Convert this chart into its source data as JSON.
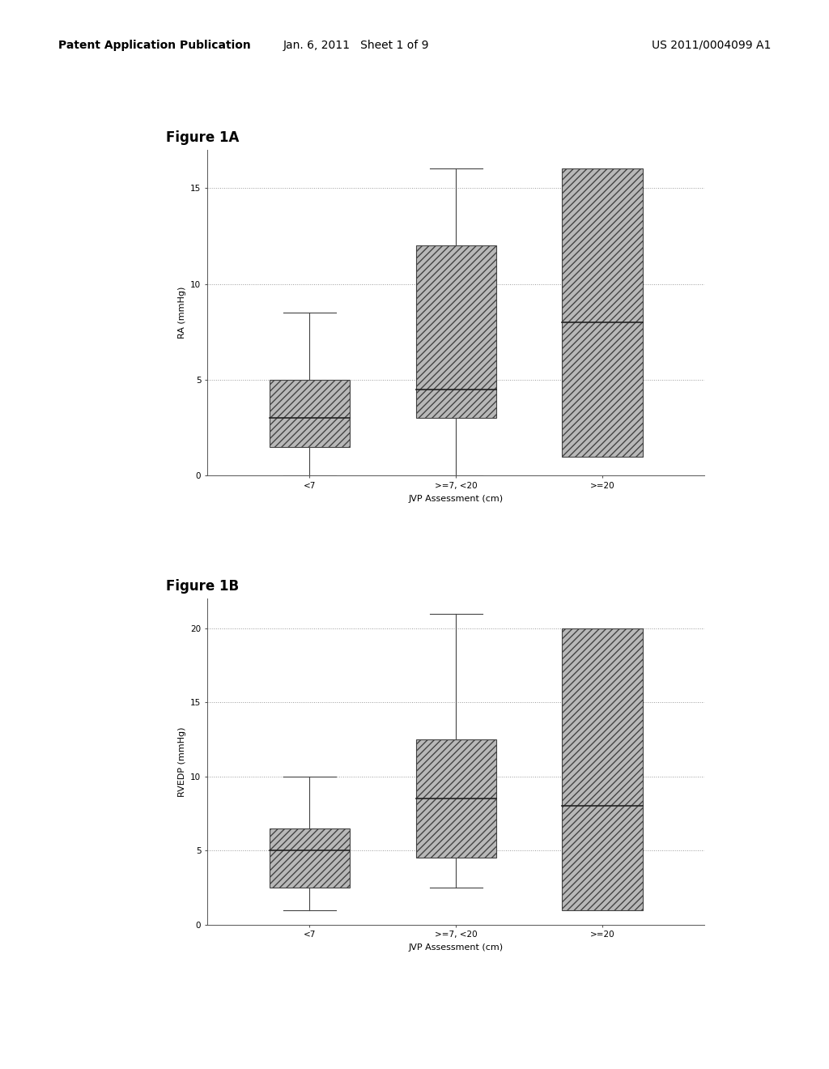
{
  "header_left": "Patent Application Publication",
  "header_center": "Jan. 6, 2011   Sheet 1 of 9",
  "header_right": "US 2011/0004099 A1",
  "fig1a_title": "Figure 1A",
  "fig1b_title": "Figure 1B",
  "fig1a_ylabel": "RA (mmHg)",
  "fig1b_ylabel": "RVEDP (mmHg)",
  "xlabel": "JVP Assessment (cm)",
  "categories": [
    "<7",
    ">=7, <20",
    ">=20"
  ],
  "fig1a_boxes": [
    {
      "whislo": 0.0,
      "q1": 1.5,
      "med": 3.0,
      "q3": 5.0,
      "whishi": 8.5,
      "has_lower_whisker": true
    },
    {
      "whislo": 0.0,
      "q1": 3.0,
      "med": 4.5,
      "q3": 12.0,
      "whishi": 16.0,
      "has_lower_whisker": true
    },
    {
      "whislo": 1.0,
      "q1": 1.0,
      "med": 8.0,
      "q3": 16.0,
      "whishi": 16.0,
      "has_lower_whisker": false
    }
  ],
  "fig1a_ylim": [
    0,
    17
  ],
  "fig1a_yticks": [
    0,
    5,
    10,
    15
  ],
  "fig1b_boxes": [
    {
      "whislo": 1.0,
      "q1": 2.5,
      "med": 5.0,
      "q3": 6.5,
      "whishi": 10.0,
      "has_lower_whisker": true
    },
    {
      "whislo": 2.5,
      "q1": 4.5,
      "med": 8.5,
      "q3": 12.5,
      "whishi": 21.0,
      "has_lower_whisker": true
    },
    {
      "whislo": 1.0,
      "q1": 1.0,
      "med": 8.0,
      "q3": 20.0,
      "whishi": 20.0,
      "has_lower_whisker": false
    }
  ],
  "fig1b_ylim": [
    0,
    22
  ],
  "fig1b_yticks": [
    0,
    5,
    10,
    15,
    20
  ],
  "box_facecolor": "#b8b8b8",
  "box_edgecolor": "#444444",
  "whisker_color": "#444444",
  "grid_color": "#999999",
  "background_color": "#ffffff",
  "page_background": "#f0f0f0",
  "header_fontsize": 10,
  "fig_title_fontsize": 12,
  "axis_label_fontsize": 8,
  "tick_fontsize": 7.5,
  "hatch_pattern": "//"
}
